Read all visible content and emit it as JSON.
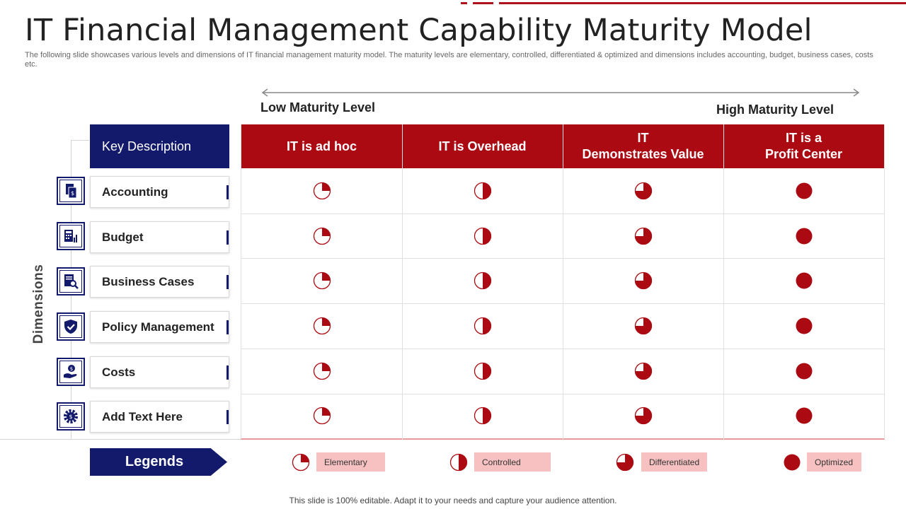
{
  "title": "IT Financial Management Capability Maturity Model",
  "subtitle": "The following slide showcases various levels and dimensions of IT financial management maturity model. The maturity levels are elementary, controlled, differentiated & optimized and dimensions includes accounting, budget, business cases, costs etc.",
  "axis": {
    "low_label": "Low Maturity Level",
    "high_label": "High Maturity Level"
  },
  "dimensions_label": "Dimensions",
  "key_description": "Key Description",
  "columns": [
    {
      "label": "IT is ad hoc",
      "level": "elementary"
    },
    {
      "label": "IT is Overhead",
      "level": "controlled"
    },
    {
      "label": "IT\nDemonstrates Value",
      "level": "differentiated"
    },
    {
      "label": "IT is a\nProfit Center",
      "level": "optimized"
    }
  ],
  "rows": [
    {
      "label": "Accounting",
      "icon": "document-dollar-icon"
    },
    {
      "label": "Budget",
      "icon": "calculator-chart-icon"
    },
    {
      "label": "Business Cases",
      "icon": "document-search-icon"
    },
    {
      "label": "Policy Management",
      "icon": "shield-check-icon"
    },
    {
      "label": "Costs",
      "icon": "hand-coin-icon"
    },
    {
      "label": "Add  Text Here",
      "icon": "gear-dollar-icon"
    }
  ],
  "legends_label": "Legends",
  "legend": [
    {
      "label": "Elementary",
      "fraction": 0.25
    },
    {
      "label": "Controlled",
      "fraction": 0.5
    },
    {
      "label": "Differentiated",
      "fraction": 0.75
    },
    {
      "label": "Optimized",
      "fraction": 1.0
    }
  ],
  "footer": "This slide is 100% editable. Adapt it to your  needs and capture your audience attention.",
  "colors": {
    "accent_red": "#ab0a12",
    "navy": "#131a6b",
    "legend_tag": "#f7c1c1"
  }
}
